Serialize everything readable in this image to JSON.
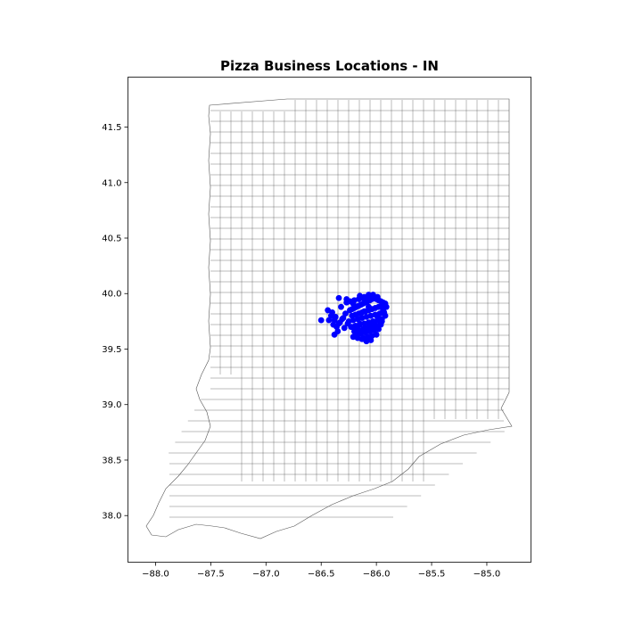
{
  "chart_data": {
    "type": "scatter",
    "title": "Pizza Business Locations - IN",
    "xlabel": "",
    "ylabel": "",
    "xlim": [
      -88.25,
      -84.6
    ],
    "ylim": [
      37.58,
      41.95
    ],
    "x_ticks": [
      -88.0,
      -87.5,
      -87.0,
      -86.5,
      -86.0,
      -85.5,
      -85.0
    ],
    "x_tick_labels": [
      "−88.0",
      "−87.5",
      "−87.0",
      "−86.5",
      "−86.0",
      "−85.5",
      "−85.0"
    ],
    "y_ticks": [
      38.0,
      38.5,
      39.0,
      39.5,
      40.0,
      40.5,
      41.0,
      41.5
    ],
    "y_tick_labels": [
      "38.0",
      "38.5",
      "39.0",
      "39.5",
      "40.0",
      "40.5",
      "41.0",
      "41.5"
    ],
    "grid": false,
    "point_color": "#0000ff",
    "basemap": "Indiana township boundaries (gray outlines)",
    "series": [
      {
        "x": [
          -86.24,
          -86.22,
          -86.2,
          -86.18,
          -86.16,
          -86.14,
          -86.12,
          -86.1,
          -86.08,
          -86.06,
          -86.04,
          -86.02,
          -86.0,
          -85.98,
          -85.96,
          -85.94,
          -85.92,
          -86.22,
          -86.19,
          -86.16,
          -86.13,
          -86.1,
          -86.07,
          -86.04,
          -86.01,
          -85.98,
          -85.95,
          -86.25,
          -86.21,
          -86.17,
          -86.13,
          -86.09,
          -86.05,
          -86.01,
          -85.97,
          -85.93,
          -86.23,
          -86.19,
          -86.15,
          -86.11,
          -86.07,
          -86.03,
          -85.99,
          -85.95,
          -86.2,
          -86.16,
          -86.12,
          -86.08,
          -86.04,
          -86.0,
          -85.96,
          -86.18,
          -86.14,
          -86.1,
          -86.06,
          -86.02,
          -85.98,
          -86.15,
          -86.11,
          -86.07,
          -86.03,
          -85.99,
          -86.12,
          -86.08,
          -86.04,
          -86.0,
          -86.28,
          -86.3,
          -86.33,
          -86.36,
          -86.38,
          -86.41,
          -86.44,
          -86.35,
          -86.39,
          -86.32,
          -86.29,
          -86.27,
          -86.43,
          -86.4,
          -86.37,
          -86.34,
          -86.31,
          -86.24,
          -86.2,
          -86.16,
          -86.12,
          -86.08,
          -86.04,
          -86.26,
          -86.22,
          -86.18,
          -86.14,
          -86.1,
          -86.06,
          -86.02,
          -85.94,
          -85.92,
          -85.95,
          -85.91,
          -85.93,
          -86.09,
          -86.05,
          -86.13,
          -86.17,
          -86.21,
          -86.5,
          -86.38,
          -86.34,
          -86.03,
          -85.96,
          -86.21,
          -86.13,
          -86.07,
          -85.99,
          -86.11,
          -86.27,
          -86.15
        ],
        "y": [
          39.85,
          39.86,
          39.87,
          39.88,
          39.89,
          39.9,
          39.91,
          39.92,
          39.93,
          39.94,
          39.95,
          39.96,
          39.95,
          39.94,
          39.93,
          39.92,
          39.91,
          39.8,
          39.81,
          39.82,
          39.83,
          39.84,
          39.85,
          39.86,
          39.87,
          39.88,
          39.89,
          39.75,
          39.76,
          39.77,
          39.78,
          39.79,
          39.8,
          39.81,
          39.82,
          39.83,
          39.7,
          39.71,
          39.72,
          39.73,
          39.74,
          39.75,
          39.76,
          39.77,
          39.66,
          39.67,
          39.68,
          39.69,
          39.7,
          39.71,
          39.72,
          39.63,
          39.64,
          39.65,
          39.66,
          39.67,
          39.68,
          39.98,
          39.97,
          39.99,
          39.98,
          39.97,
          39.6,
          39.61,
          39.62,
          39.63,
          39.82,
          39.78,
          39.74,
          39.7,
          39.76,
          39.8,
          39.85,
          39.66,
          39.72,
          39.88,
          39.69,
          39.92,
          39.76,
          39.83,
          39.79,
          39.73,
          39.77,
          39.93,
          39.94,
          39.95,
          39.96,
          39.97,
          39.98,
          39.73,
          39.7,
          39.68,
          39.66,
          39.69,
          39.72,
          39.74,
          39.85,
          39.8,
          39.75,
          39.88,
          39.82,
          39.57,
          39.58,
          39.59,
          39.6,
          39.61,
          39.76,
          39.63,
          39.96,
          39.99,
          39.74,
          39.91,
          39.66,
          39.88,
          39.79,
          39.84,
          39.95,
          39.73
        ]
      }
    ]
  }
}
